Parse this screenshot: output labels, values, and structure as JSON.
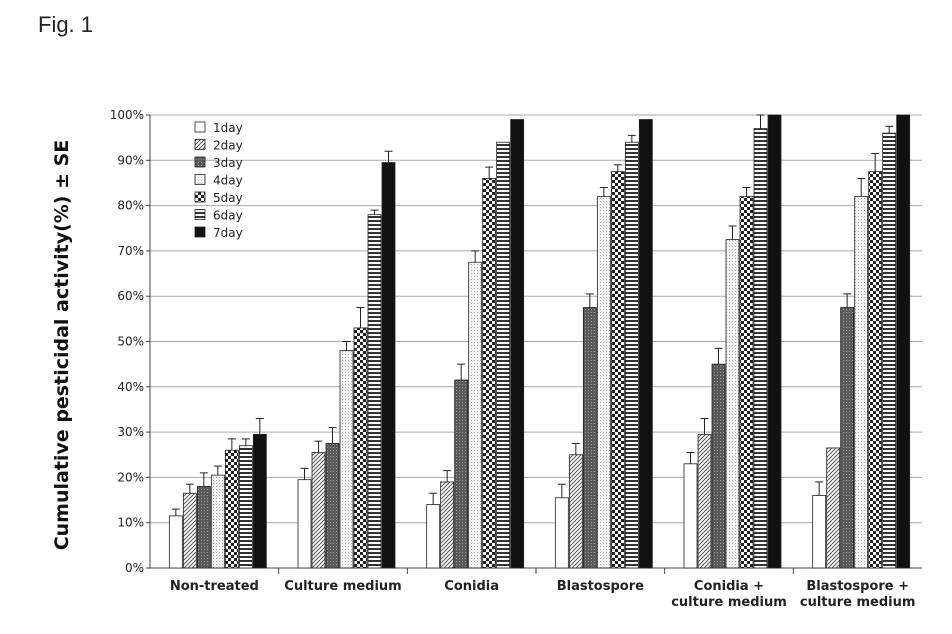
{
  "figure_label": "Fig. 1",
  "chart_data": {
    "type": "bar",
    "title": "",
    "xlabel": "",
    "ylabel": "Cumulative pesticidal activity(%) ± SE",
    "ylim": [
      0,
      100
    ],
    "yticks": [
      0,
      10,
      20,
      30,
      40,
      50,
      60,
      70,
      80,
      90,
      100
    ],
    "ytick_labels": [
      "0%",
      "10%",
      "20%",
      "30%",
      "40%",
      "50%",
      "60%",
      "70%",
      "80%",
      "90%",
      "100%"
    ],
    "grid": true,
    "legend_position": "top-left",
    "categories": [
      [
        "Non-treated"
      ],
      [
        "Culture medium"
      ],
      [
        "Conidia"
      ],
      [
        "Blastospore"
      ],
      [
        "Conidia +",
        "culture medium"
      ],
      [
        "Blastospore +",
        "culture medium"
      ]
    ],
    "series": [
      {
        "name": "1day",
        "pattern": "white",
        "values": [
          11.5,
          19.5,
          14,
          15.5,
          23,
          16
        ],
        "errors": [
          1.5,
          2.5,
          2.5,
          3,
          2.5,
          3
        ]
      },
      {
        "name": "2day",
        "pattern": "diag",
        "values": [
          16.5,
          25.5,
          19,
          25,
          29.5,
          26.5
        ],
        "errors": [
          2,
          2.5,
          2.5,
          2.5,
          3.5,
          0
        ]
      },
      {
        "name": "3day",
        "pattern": "dark",
        "values": [
          18,
          27.5,
          41.5,
          57.5,
          45,
          57.5
        ],
        "errors": [
          3,
          3.5,
          3.5,
          3,
          3.5,
          3
        ]
      },
      {
        "name": "4day",
        "pattern": "light",
        "values": [
          20.5,
          48,
          67.5,
          82,
          72.5,
          82
        ],
        "errors": [
          2,
          2,
          2.5,
          2,
          3,
          4
        ]
      },
      {
        "name": "5day",
        "pattern": "check",
        "values": [
          26,
          53,
          86,
          87.5,
          82,
          87.5
        ],
        "errors": [
          2.5,
          4.5,
          2.5,
          1.5,
          2,
          4
        ]
      },
      {
        "name": "6day",
        "pattern": "hstripe",
        "values": [
          27,
          78,
          94,
          94,
          97,
          96
        ],
        "errors": [
          1.5,
          1,
          0,
          1.5,
          3,
          1.5
        ]
      },
      {
        "name": "7day",
        "pattern": "black",
        "values": [
          29.5,
          89.5,
          99,
          99,
          100,
          100
        ],
        "errors": [
          3.5,
          2.5,
          0,
          0,
          0,
          0
        ]
      }
    ]
  }
}
